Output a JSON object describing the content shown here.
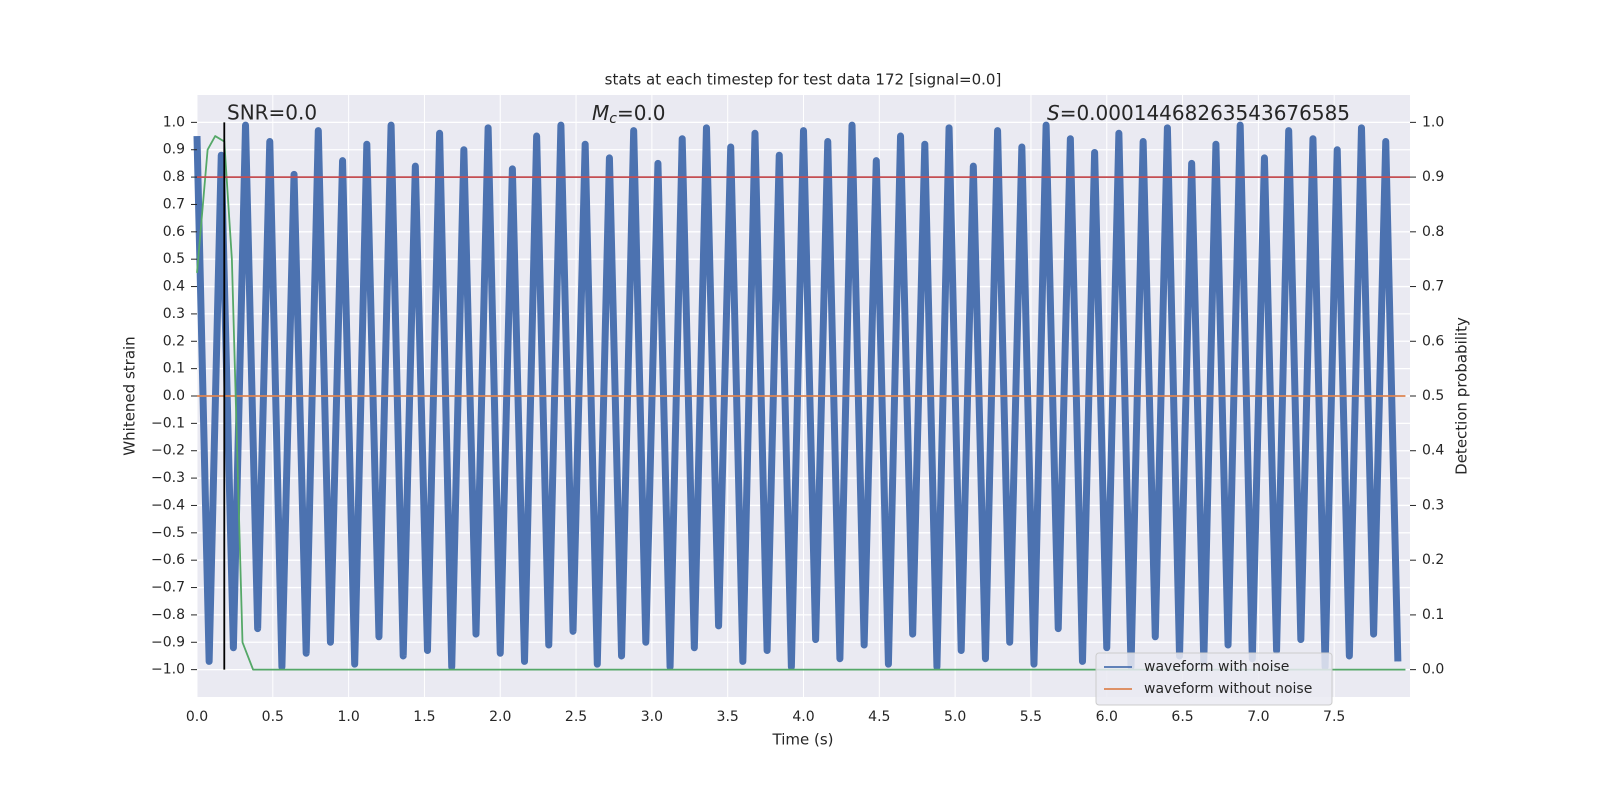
{
  "chart_data": {
    "type": "line",
    "title": "stats at each timestep for test data 172 [signal=0.0]",
    "xlabel": "Time (s)",
    "ylabel": "Whitened strain",
    "y2label": "Detection probability",
    "annotations": {
      "snr": "SNR=0.0",
      "mc": {
        "symbol": "M",
        "subscript": "c",
        "text": "=0.0"
      },
      "s": {
        "symbol": "S",
        "text": "=0.00014468263543676585"
      }
    },
    "xlim": [
      0,
      8.0
    ],
    "ylim": [
      -1.1,
      1.1
    ],
    "y2lim": [
      -0.05,
      1.05
    ],
    "xticks": [
      {
        "value": 0,
        "label": "0.0"
      },
      0.5,
      {
        "value": 1,
        "label": "1.0"
      },
      1.5,
      {
        "value": 2,
        "label": "2.0"
      },
      2.5,
      {
        "value": 3,
        "label": "3.0"
      },
      3.5,
      {
        "value": 4,
        "label": "4.0"
      },
      4.5,
      {
        "value": 5,
        "label": "5.0"
      },
      5.5,
      {
        "value": 6,
        "label": "6.0"
      },
      6.5,
      {
        "value": 7,
        "label": "7.0"
      },
      7.5
    ],
    "yticks": [
      {
        "value": -1,
        "label": "−1.0"
      },
      {
        "value": -0.9,
        "label": "−0.9"
      },
      {
        "value": -0.8,
        "label": "−0.8"
      },
      {
        "value": -0.7,
        "label": "−0.7"
      },
      {
        "value": -0.6,
        "label": "−0.6"
      },
      {
        "value": -0.5,
        "label": "−0.5"
      },
      {
        "value": -0.4,
        "label": "−0.4"
      },
      {
        "value": -0.3,
        "label": "−0.3"
      },
      {
        "value": -0.2,
        "label": "−0.2"
      },
      {
        "value": -0.1,
        "label": "−0.1"
      },
      {
        "value": 0,
        "label": "0.0"
      },
      0.1,
      0.2,
      0.3,
      0.4,
      0.5,
      0.6,
      0.7,
      0.8,
      0.9,
      {
        "value": 1,
        "label": "1.0"
      }
    ],
    "y2ticks": [
      {
        "value": 0,
        "label": "0.0"
      },
      0.1,
      0.2,
      0.3,
      0.4,
      0.5,
      0.6,
      0.7,
      0.8,
      0.9,
      {
        "value": 1,
        "label": "1.0"
      }
    ],
    "grid": true,
    "legend": "lower right",
    "series": [
      {
        "name": "waveform with noise",
        "color": "#4c72b0",
        "x": [
          0,
          0.08,
          0.16,
          0.24,
          0.32,
          0.4,
          0.48,
          0.56,
          0.64,
          0.72,
          0.8,
          0.88,
          0.96,
          1.04,
          1.12,
          1.2,
          1.28,
          1.36,
          1.44,
          1.52,
          1.6,
          1.68,
          1.76,
          1.84,
          1.92,
          2.0,
          2.08,
          2.16,
          2.24,
          2.32,
          2.4,
          2.48,
          2.56,
          2.64,
          2.72,
          2.8,
          2.88,
          2.96,
          3.04,
          3.12,
          3.2,
          3.28,
          3.36,
          3.44,
          3.52,
          3.6,
          3.68,
          3.76,
          3.84,
          3.92,
          4.0,
          4.08,
          4.16,
          4.24,
          4.32,
          4.4,
          4.48,
          4.56,
          4.64,
          4.72,
          4.8,
          4.88,
          4.96,
          5.04,
          5.12,
          5.2,
          5.28,
          5.36,
          5.44,
          5.52,
          5.6,
          5.68,
          5.76,
          5.84,
          5.92,
          6.0,
          6.08,
          6.16,
          6.24,
          6.32,
          6.4,
          6.48,
          6.56,
          6.64,
          6.72,
          6.8,
          6.88,
          6.96,
          7.04,
          7.12,
          7.2,
          7.28,
          7.36,
          7.44,
          7.52,
          7.6,
          7.68,
          7.76,
          7.84,
          7.92
        ],
        "values": [
          0.95,
          -0.97,
          0.88,
          -0.92,
          0.99,
          -0.85,
          0.93,
          -0.99,
          0.81,
          -0.94,
          0.97,
          -0.9,
          0.86,
          -0.98,
          0.92,
          -0.88,
          0.99,
          -0.95,
          0.84,
          -0.93,
          0.96,
          -0.99,
          0.9,
          -0.87,
          0.98,
          -0.94,
          0.83,
          -0.97,
          0.95,
          -0.91,
          0.99,
          -0.86,
          0.92,
          -0.98,
          0.87,
          -0.95,
          0.97,
          -0.9,
          0.85,
          -0.99,
          0.94,
          -0.92,
          0.98,
          -0.84,
          0.91,
          -0.97,
          0.96,
          -0.93,
          0.88,
          -0.99,
          0.97,
          -0.89,
          0.93,
          -0.96,
          0.99,
          -0.91,
          0.86,
          -0.98,
          0.95,
          -0.87,
          0.92,
          -0.99,
          0.98,
          -0.93,
          0.84,
          -0.96,
          0.97,
          -0.9,
          0.91,
          -0.98,
          0.99,
          -0.85,
          0.94,
          -0.97,
          0.89,
          -0.92,
          0.96,
          -0.99,
          0.93,
          -0.88,
          0.98,
          -0.95,
          0.85,
          -0.97,
          0.92,
          -0.91,
          0.99,
          -0.96,
          0.87,
          -0.93,
          0.97,
          -0.89,
          0.94,
          -0.99,
          0.9,
          -0.95,
          0.98,
          -0.87,
          0.93,
          -0.97
        ]
      },
      {
        "name": "waveform without noise",
        "color": "#dd8452",
        "x": [
          0,
          7.97
        ],
        "values": [
          0,
          0
        ]
      },
      {
        "color": "#55a868",
        "axis": "y2",
        "x": [
          0,
          0.07,
          0.12,
          0.18,
          0.23,
          0.3,
          0.37,
          7.97
        ],
        "values": [
          0.725,
          0.95,
          0.975,
          0.965,
          0.75,
          0.05,
          0,
          0
        ]
      }
    ],
    "threshold": {
      "value": 0.9,
      "axis": "y2",
      "color": "#c44e52"
    },
    "vline": {
      "value": 0.18,
      "color": "#000000"
    }
  }
}
